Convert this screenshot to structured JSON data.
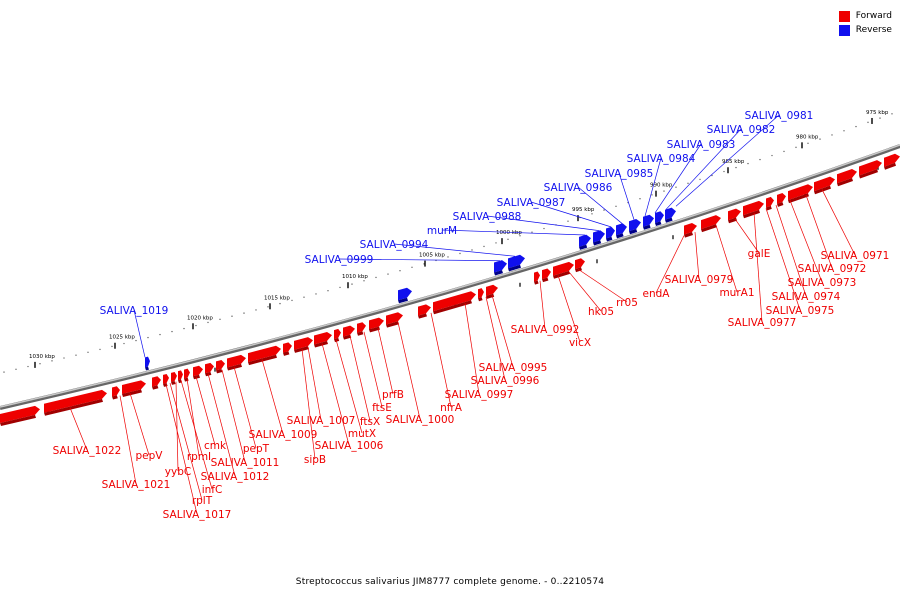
{
  "legend": {
    "forward_label": "Forward",
    "reverse_label": "Reverse",
    "forward_color": "#ee0000",
    "reverse_color": "#1010ee"
  },
  "caption": "Streptococcus salivarius JIM8777 complete genome. - 0..2210574",
  "colors": {
    "forward": "#ee0000",
    "forward_dark": "#a00000",
    "reverse": "#1010ee",
    "reverse_dark": "#000088",
    "backbone": "#888888"
  },
  "ticks": [
    "975 kbp",
    "980 kbp",
    "985 kbp",
    "990 kbp",
    "995 kbp",
    "1000 kbp",
    "1005 kbp",
    "1010 kbp",
    "1015 kbp",
    "1020 kbp",
    "1025 kbp",
    "1030 kbp"
  ],
  "forward_labels": [
    "SALIVA_0971",
    "SALIVA_0972",
    "SALIVA_0973",
    "SALIVA_0974",
    "SALIVA_0975",
    "SALIVA_0977",
    "galE",
    "murA1",
    "SALIVA_0979",
    "endA",
    "rr05",
    "hk05",
    "vicX",
    "SALIVA_0992",
    "SALIVA_0995",
    "SALIVA_0996",
    "SALIVA_0997",
    "nfrA",
    "SALIVA_1000",
    "prfB",
    "ftsE",
    "ftsX",
    "mutX",
    "SALIVA_1006",
    "SALIVA_1007",
    "sipB",
    "SALIVA_1009",
    "pepT",
    "SALIVA_1011",
    "SALIVA_1012",
    "cmk",
    "rpmI",
    "infC",
    "yybC",
    "rplT",
    "SALIVA_1017",
    "pepV",
    "SALIVA_1021",
    "SALIVA_1022"
  ],
  "reverse_labels": [
    "SALIVA_0981",
    "SALIVA_0982",
    "SALIVA_0983",
    "SALIVA_0984",
    "SALIVA_0985",
    "SALIVA_0986",
    "SALIVA_0987",
    "SALIVA_0988",
    "murM",
    "SALIVA_0994",
    "SALIVA_0999",
    "SALIVA_1019"
  ]
}
